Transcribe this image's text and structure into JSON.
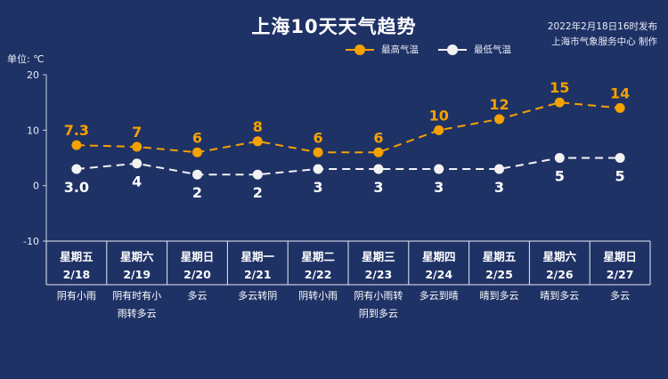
{
  "header": {
    "title": "上海10天天气趋势",
    "published": "2022年2月18日16时发布",
    "producer": "上海市气象服务中心 制作"
  },
  "colors": {
    "background": "#1f3266",
    "high": "#f5a100",
    "low": "#f2f2f2",
    "high_label": "#f5a100",
    "low_label": "#ffffff"
  },
  "chart_data": {
    "type": "line",
    "unit_label": "单位: ℃",
    "ylim": [
      -10,
      20
    ],
    "yticks": [
      -10,
      0,
      10,
      20
    ],
    "grid": false,
    "legend": "top-right",
    "categories": [
      {
        "weekday": "星期五",
        "date": "2/18",
        "weather": [
          "阴有小雨"
        ]
      },
      {
        "weekday": "星期六",
        "date": "2/19",
        "weather": [
          "阴有时有小",
          "雨转多云"
        ]
      },
      {
        "weekday": "星期日",
        "date": "2/20",
        "weather": [
          "多云"
        ]
      },
      {
        "weekday": "星期一",
        "date": "2/21",
        "weather": [
          "多云转阴"
        ]
      },
      {
        "weekday": "星期二",
        "date": "2/22",
        "weather": [
          "阴转小雨"
        ]
      },
      {
        "weekday": "星期三",
        "date": "2/23",
        "weather": [
          "阴有小雨转",
          "阴到多云"
        ]
      },
      {
        "weekday": "星期四",
        "date": "2/24",
        "weather": [
          "多云到晴"
        ]
      },
      {
        "weekday": "星期五",
        "date": "2/25",
        "weather": [
          "晴到多云"
        ]
      },
      {
        "weekday": "星期六",
        "date": "2/26",
        "weather": [
          "晴到多云"
        ]
      },
      {
        "weekday": "星期日",
        "date": "2/27",
        "weather": [
          "多云"
        ]
      }
    ],
    "series": [
      {
        "name": "最高气温",
        "key": "high",
        "values": [
          7.3,
          7,
          6,
          8,
          6,
          6,
          10,
          12,
          15,
          14
        ],
        "labels": [
          "7.3",
          "7",
          "6",
          "8",
          "6",
          "6",
          "10",
          "12",
          "15",
          "14"
        ]
      },
      {
        "name": "最低气温",
        "key": "low",
        "values": [
          3.0,
          4,
          2,
          2,
          3,
          3,
          3,
          3,
          5,
          5
        ],
        "labels": [
          "3.0",
          "4",
          "2",
          "2",
          "3",
          "3",
          "3",
          "3",
          "5",
          "5"
        ]
      }
    ]
  }
}
